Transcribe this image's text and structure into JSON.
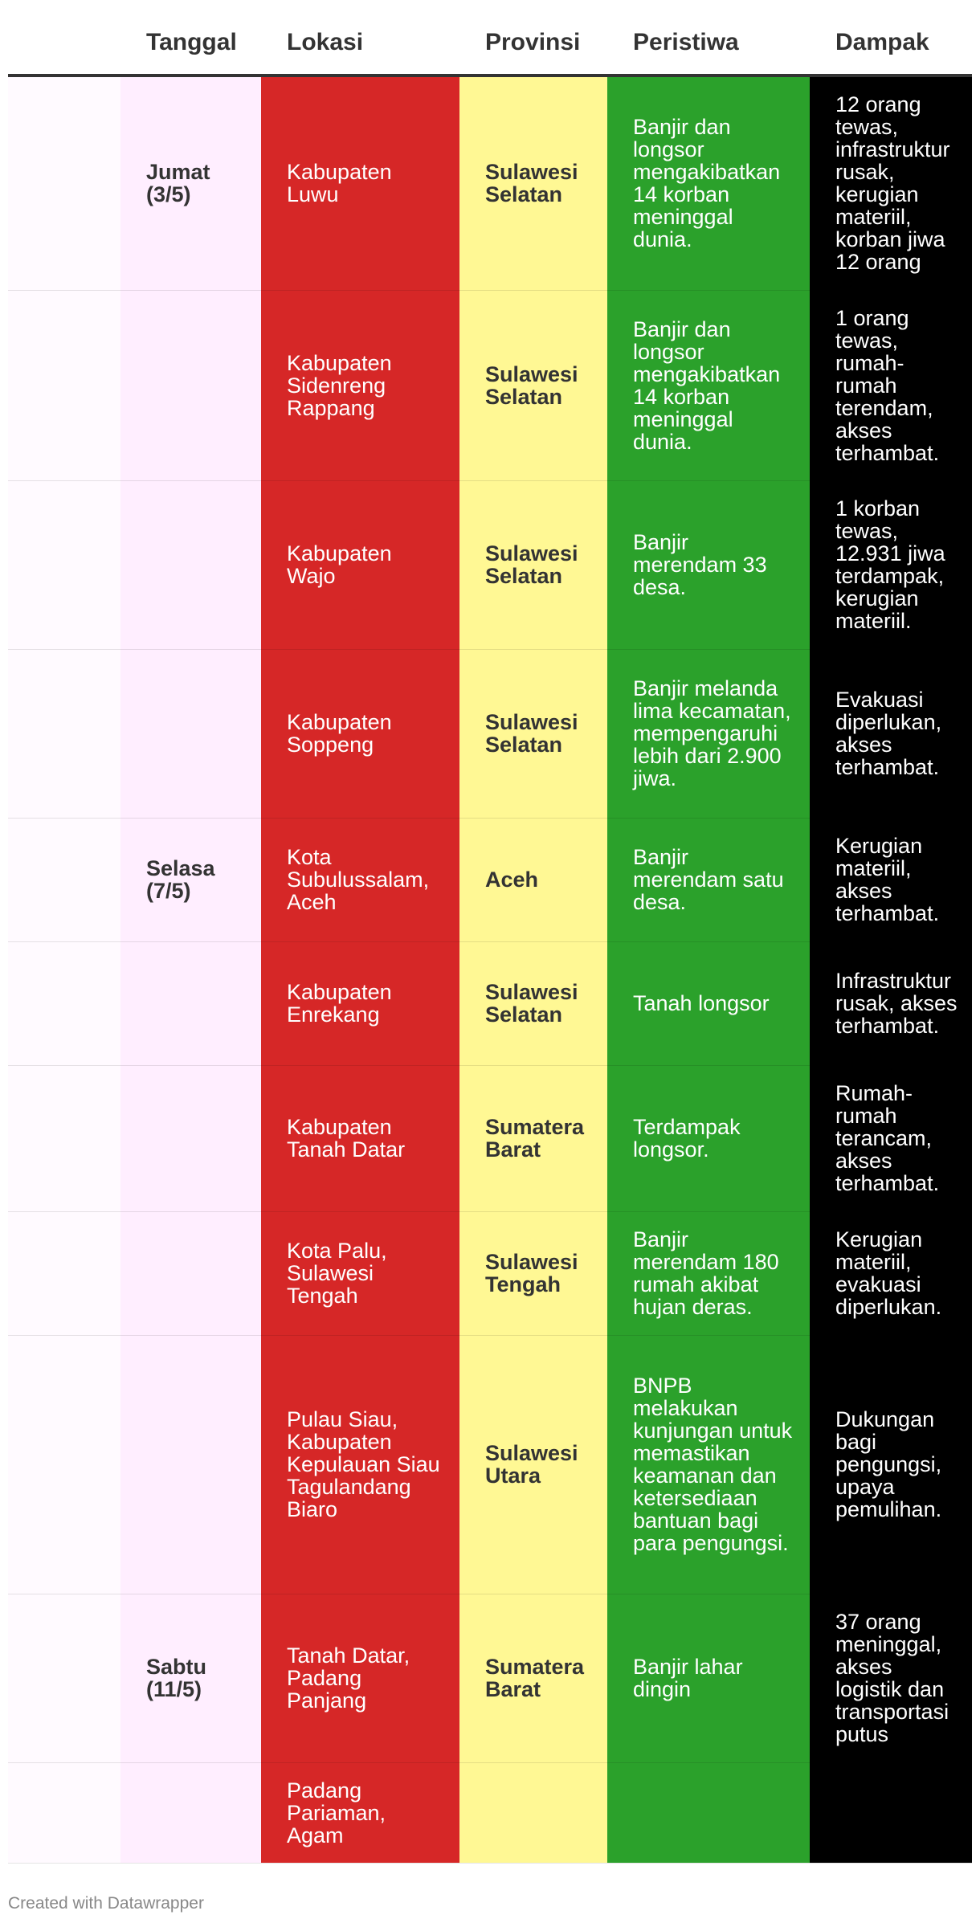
{
  "headers": {
    "tanggal": "Tanggal",
    "lokasi": "Lokasi",
    "provinsi": "Provinsi",
    "peristiwa": "Peristiwa",
    "dampak": "Dampak"
  },
  "rows": [
    {
      "tanggal": "Jumat (3/5)",
      "lokasi": "Kabupaten Luwu",
      "provinsi": "Sulawesi Selatan",
      "peristiwa": "Banjir dan longsor mengakibatkan 14 korban meninggal dunia.",
      "dampak": "12 orang tewas, infrastruktur rusak, kerugian materiil, korban jiwa 12 orang"
    },
    {
      "tanggal": "",
      "lokasi": "Kabupaten Sidenreng Rappang",
      "provinsi": "Sulawesi Selatan",
      "peristiwa": "Banjir dan longsor mengakibatkan 14 korban meninggal dunia.",
      "dampak": "1 orang tewas, rumah-rumah terendam, akses terhambat."
    },
    {
      "tanggal": "",
      "lokasi": "Kabupaten Wajo",
      "provinsi": "Sulawesi Selatan",
      "peristiwa": "Banjir merendam 33 desa.",
      "dampak": "1 korban tewas, 12.931 jiwa terdampak, kerugian materiil."
    },
    {
      "tanggal": "",
      "lokasi": "Kabupaten Soppeng",
      "provinsi": "Sulawesi Selatan",
      "peristiwa": "Banjir melanda lima kecamatan, mempengaruhi lebih dari 2.900 jiwa.",
      "dampak": "Evakuasi diperlukan, akses terhambat."
    },
    {
      "tanggal": "Selasa (7/5)",
      "lokasi": "Kota Subulussalam, Aceh",
      "provinsi": "Aceh",
      "peristiwa": "Banjir merendam satu desa.",
      "dampak": "Kerugian materiil, akses terhambat."
    },
    {
      "tanggal": "",
      "lokasi": "Kabupaten Enrekang",
      "provinsi": "Sulawesi Selatan",
      "peristiwa": "Tanah longsor",
      "dampak": "Infrastruktur rusak, akses terhambat."
    },
    {
      "tanggal": "",
      "lokasi": "Kabupaten Tanah Datar",
      "provinsi": "Sumatera Barat",
      "peristiwa": "Terdampak longsor.",
      "dampak": "Rumah-rumah terancam, akses terhambat."
    },
    {
      "tanggal": "",
      "lokasi": "Kota Palu, Sulawesi Tengah",
      "provinsi": "Sulawesi Tengah",
      "peristiwa": "Banjir merendam 180 rumah akibat hujan deras.",
      "dampak": "Kerugian materiil, evakuasi diperlukan."
    },
    {
      "tanggal": "",
      "lokasi": "Pulau Siau, Kabupaten Kepulauan Siau Tagulandang Biaro",
      "provinsi": "Sulawesi Utara",
      "peristiwa": "BNPB melakukan kunjungan untuk memastikan keamanan dan ketersediaan bantuan bagi para pengungsi.",
      "dampak": "Dukungan bagi pengungsi, upaya pemulihan."
    },
    {
      "tanggal": "Sabtu (11/5)",
      "lokasi": "Tanah Datar, Padang Panjang",
      "provinsi": "Sumatera Barat",
      "peristiwa": "Banjir lahar dingin",
      "dampak": "37 orang meninggal, akses logistik dan transportasi putus"
    },
    {
      "tanggal": "",
      "lokasi": "Padang Pariaman, Agam",
      "provinsi": "",
      "peristiwa": "",
      "dampak": ""
    }
  ],
  "footer": "Created with Datawrapper"
}
